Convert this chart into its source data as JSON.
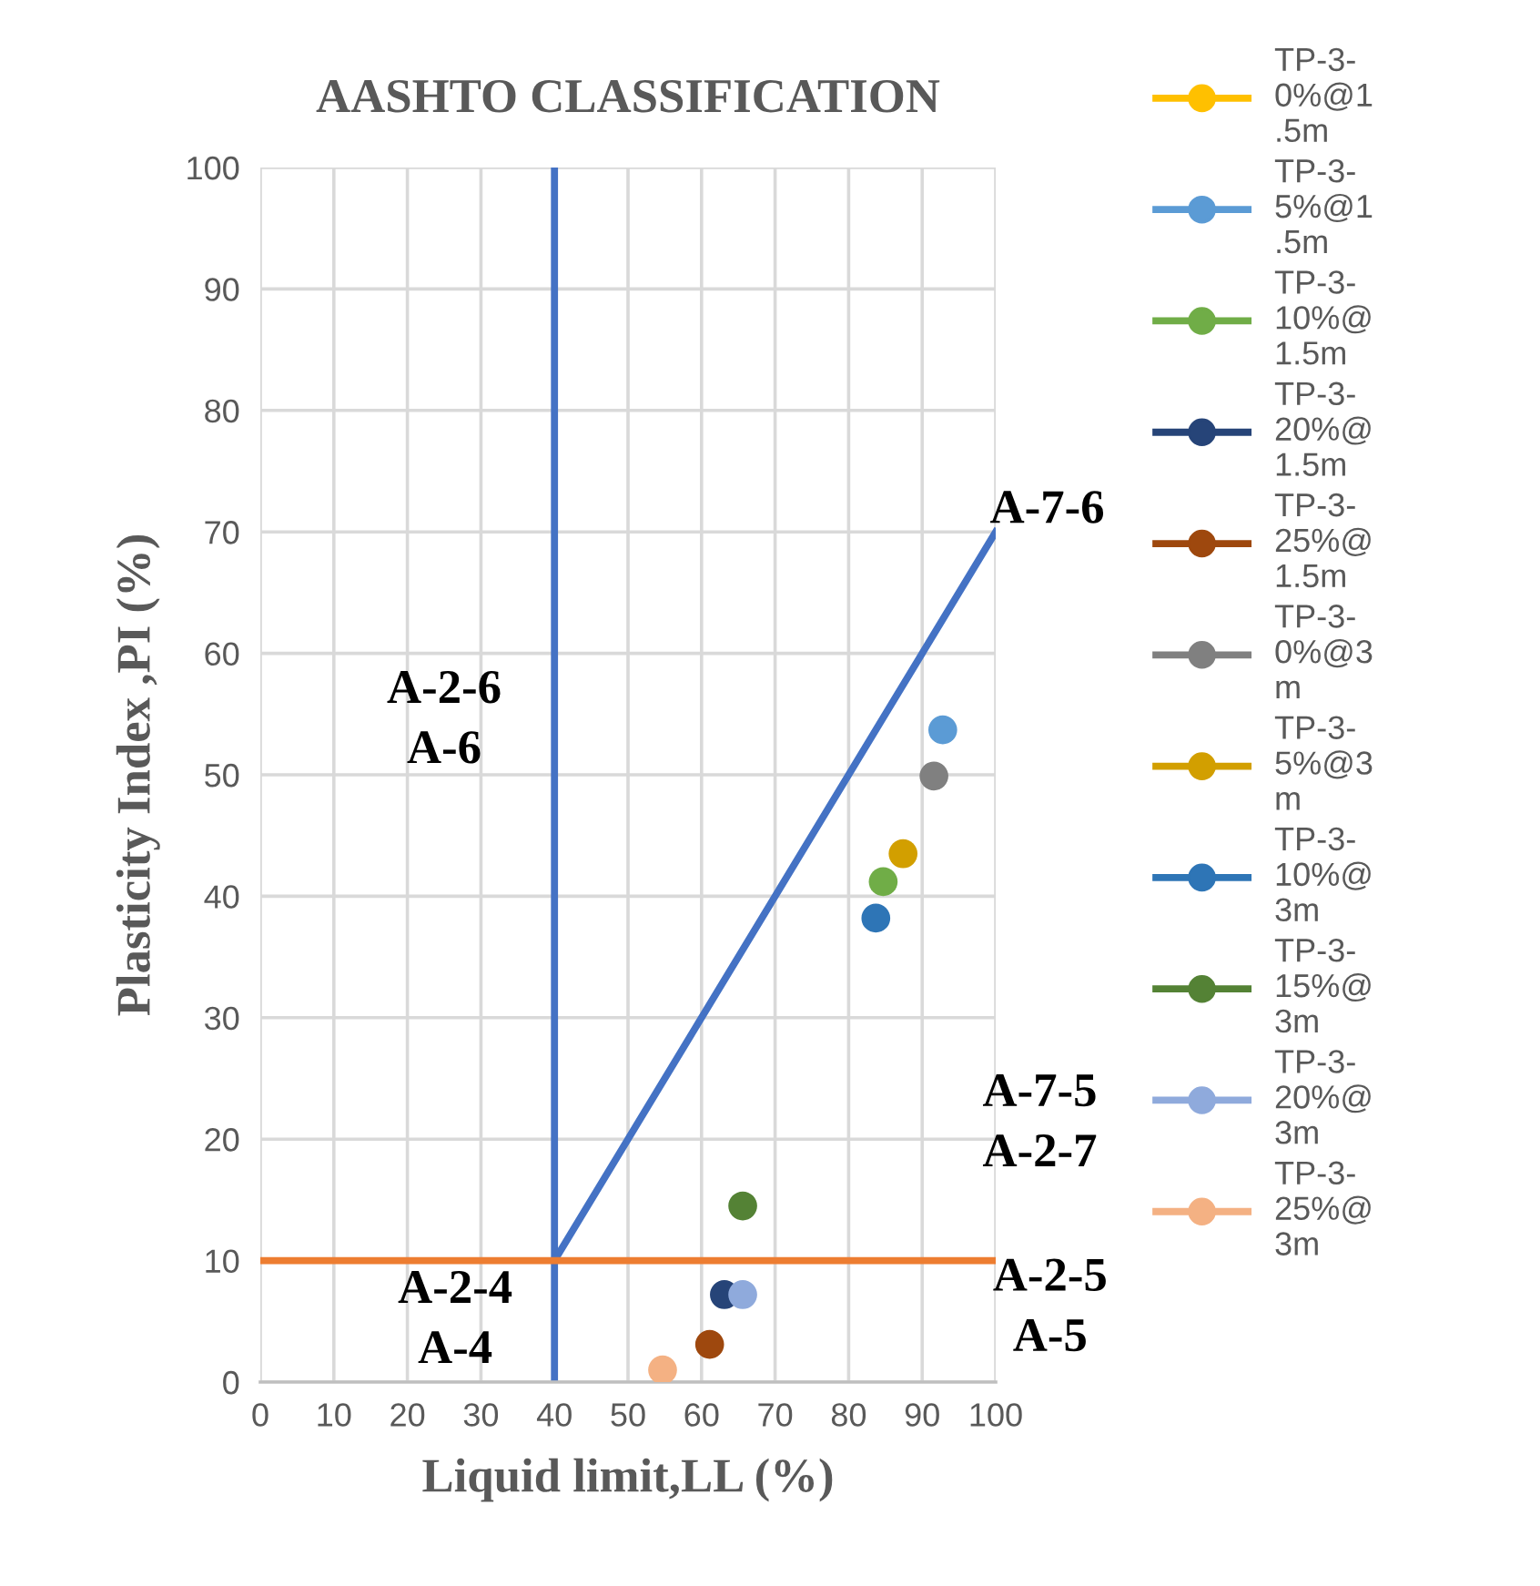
{
  "chart_data": {
    "type": "scatter",
    "title": "AASHTO CLASSIFICATION",
    "xlabel": "Liquid limit,LL (%)",
    "ylabel": "Plasticity Index ,PI (%)",
    "xlim": [
      0,
      100
    ],
    "xticks": [
      0,
      10,
      20,
      30,
      40,
      50,
      60,
      70,
      80,
      90,
      100
    ],
    "ylim": [
      0,
      100
    ],
    "yticks": [
      0,
      10,
      20,
      30,
      40,
      50,
      60,
      70,
      80,
      90,
      100
    ],
    "grid": true,
    "legend": "right",
    "marker": "circle",
    "series": [
      {
        "type": "line",
        "color": "#4472c4",
        "x": [
          40,
          40
        ],
        "values": [
          0,
          100
        ],
        "marker": "none"
      },
      {
        "type": "line",
        "color": "#4472c4",
        "x": [
          40,
          100
        ],
        "values": [
          10,
          70
        ],
        "marker": "none"
      },
      {
        "type": "line",
        "color": "#ed7d31",
        "x": [
          0,
          100
        ],
        "values": [
          10,
          10
        ],
        "marker": "none"
      },
      {
        "name": "TP-3-\n0%@1\n.5m",
        "color": "#ffc000",
        "x": [
          null
        ],
        "values": [
          null
        ]
      },
      {
        "name": "TP-3-\n5%@1\n.5m",
        "color": "#5b9bd5",
        "x": [
          92.8
        ],
        "values": [
          53.7
        ]
      },
      {
        "name": "TP-3-\n10%@\n1.5m",
        "color": "#70ad47",
        "x": [
          84.7
        ],
        "values": [
          41.2
        ]
      },
      {
        "name": "TP-3-\n20%@\n1.5m",
        "color": "#264478",
        "x": [
          63.1
        ],
        "values": [
          7.2
        ]
      },
      {
        "name": "TP-3-\n25%@\n1.5m",
        "color": "#9e480e",
        "x": [
          61.1
        ],
        "values": [
          3.1
        ]
      },
      {
        "name": "TP-3-\n0%@3\nm",
        "color": "#808080",
        "x": [
          91.6
        ],
        "values": [
          49.9
        ]
      },
      {
        "name": "TP-3-\n5%@3\nm",
        "color": "#d29f00",
        "x": [
          87.4
        ],
        "values": [
          43.5
        ]
      },
      {
        "name": "TP-3-\n10%@\n3m",
        "color": "#2e75b6",
        "x": [
          83.7
        ],
        "values": [
          38.2
        ]
      },
      {
        "name": "TP-3-\n15%@\n3m",
        "color": "#548235",
        "x": [
          65.6
        ],
        "values": [
          14.5
        ]
      },
      {
        "name": "TP-3-\n20%@\n3m",
        "color": "#8faadc",
        "x": [
          65.6
        ],
        "values": [
          7.2
        ]
      },
      {
        "name": "TP-3-\n25%@\n3m",
        "color": "#f4b183",
        "x": [
          54.7
        ],
        "values": [
          1.0
        ]
      }
    ],
    "annotations": [
      "A-7-6",
      "A-2-6\nA-6",
      "A-7-5\nA-2-7",
      "A-2-4\nA-4",
      "A-2-5\nA-5"
    ]
  }
}
